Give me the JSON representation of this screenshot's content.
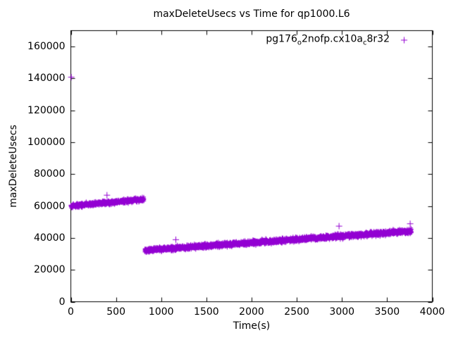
{
  "chart_data": {
    "type": "scatter",
    "title": "maxDeleteUsecs vs Time for qp1000.L6",
    "xlabel": "Time(s)",
    "ylabel": "maxDeleteUsecs",
    "xlim": [
      0,
      4000
    ],
    "ylim": [
      0,
      170000
    ],
    "xticks": [
      0,
      500,
      1000,
      1500,
      2000,
      2500,
      3000,
      3500,
      4000
    ],
    "yticks": [
      0,
      20000,
      40000,
      60000,
      80000,
      100000,
      120000,
      140000,
      160000
    ],
    "grid": false,
    "tick_mirror": true,
    "legend_position": "top-right-inside",
    "background_color": "#ffffff",
    "border_color": "#000000",
    "series": [
      {
        "name": "pg176_o2nofp.cx10a_c8r32",
        "label_segments": [
          {
            "text": "pg176"
          },
          {
            "text": "o",
            "sub": true
          },
          {
            "text": "2nofp.cx10a"
          },
          {
            "text": "c",
            "sub": true
          },
          {
            "text": "8r32"
          }
        ],
        "marker": "plus",
        "color": "#9400D3",
        "bands": [
          {
            "t_start": 0,
            "t_end": 810,
            "y_start": 60000,
            "y_end": 64200,
            "noise": 2000,
            "points_per_sec": 1
          },
          {
            "t_start": 818,
            "t_end": 3770,
            "y_start": 32200,
            "y_end": 44300,
            "noise": 2300,
            "points_per_sec": 1
          }
        ],
        "outliers": [
          [
            5,
            140800
          ],
          [
            400,
            66800
          ],
          [
            1162,
            38900
          ],
          [
            2968,
            47400
          ],
          [
            3755,
            48900
          ]
        ]
      }
    ]
  }
}
